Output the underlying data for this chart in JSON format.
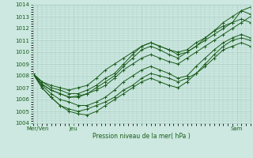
{
  "xlabel": "Pression niveau de la mer( hPa )",
  "bg_color": "#cce8e0",
  "grid_color": "#aaccc4",
  "line_color": "#1a5c1a",
  "ylim": [
    1004,
    1014
  ],
  "yticks": [
    1004,
    1005,
    1006,
    1007,
    1008,
    1009,
    1010,
    1011,
    1012,
    1013,
    1014
  ],
  "xlim": [
    0,
    96
  ],
  "xtick_positions": [
    2,
    18,
    48,
    90
  ],
  "xtick_labels": [
    "Mer/Ven",
    "Jeu",
    "",
    "Sam"
  ],
  "series": [
    {
      "x": [
        0,
        4,
        8,
        12,
        16,
        20,
        24,
        28,
        32,
        36,
        40,
        44,
        48,
        52,
        56,
        60,
        64,
        68,
        72,
        76,
        80,
        84,
        88,
        92,
        96
      ],
      "y": [
        1008.2,
        1007.3,
        1006.8,
        1006.5,
        1006.2,
        1006.3,
        1006.5,
        1006.8,
        1007.2,
        1007.8,
        1008.5,
        1009.0,
        1009.5,
        1009.8,
        1009.5,
        1009.2,
        1009.0,
        1009.5,
        1010.0,
        1010.5,
        1011.0,
        1011.5,
        1012.0,
        1012.5,
        1013.0
      ]
    },
    {
      "x": [
        0,
        4,
        8,
        12,
        16,
        20,
        24,
        28,
        32,
        36,
        40,
        44,
        48,
        52,
        56,
        60,
        64,
        68,
        72,
        76,
        80,
        84,
        88,
        92,
        96
      ],
      "y": [
        1008.2,
        1007.0,
        1006.2,
        1005.5,
        1005.0,
        1004.8,
        1004.7,
        1005.0,
        1005.5,
        1006.0,
        1006.5,
        1007.0,
        1007.5,
        1007.8,
        1007.5,
        1007.2,
        1007.0,
        1007.5,
        1008.2,
        1009.0,
        1009.8,
        1010.5,
        1011.0,
        1011.2,
        1011.0
      ]
    },
    {
      "x": [
        0,
        4,
        8,
        12,
        16,
        20,
        24,
        28,
        32,
        36,
        40,
        44,
        48,
        52,
        56,
        60,
        64,
        68,
        72,
        76,
        80,
        84,
        88,
        92,
        96
      ],
      "y": [
        1008.2,
        1007.5,
        1007.0,
        1006.8,
        1006.5,
        1006.5,
        1006.8,
        1007.2,
        1007.8,
        1008.2,
        1009.0,
        1009.8,
        1010.5,
        1010.8,
        1010.5,
        1010.2,
        1009.8,
        1010.0,
        1010.5,
        1011.0,
        1011.5,
        1012.0,
        1012.5,
        1013.5,
        1013.8
      ]
    },
    {
      "x": [
        0,
        4,
        8,
        12,
        16,
        20,
        24,
        28,
        32,
        36,
        40,
        44,
        48,
        52,
        56,
        60,
        64,
        68,
        72,
        76,
        80,
        84,
        88,
        92,
        96
      ],
      "y": [
        1008.2,
        1007.2,
        1006.5,
        1006.0,
        1005.8,
        1005.5,
        1005.5,
        1005.8,
        1006.2,
        1006.8,
        1007.5,
        1008.0,
        1008.5,
        1008.8,
        1008.5,
        1008.2,
        1007.8,
        1008.0,
        1008.8,
        1009.5,
        1010.2,
        1010.8,
        1011.2,
        1011.5,
        1011.2
      ]
    },
    {
      "x": [
        0,
        4,
        8,
        12,
        16,
        20,
        24,
        28,
        32,
        36,
        40,
        44,
        48,
        52,
        56,
        60,
        64,
        68,
        72,
        76,
        80,
        84,
        88,
        92,
        96
      ],
      "y": [
        1008.2,
        1007.3,
        1006.8,
        1006.5,
        1006.2,
        1006.2,
        1006.5,
        1007.0,
        1007.5,
        1008.0,
        1008.8,
        1009.5,
        1010.2,
        1010.5,
        1010.2,
        1009.8,
        1009.5,
        1010.0,
        1010.5,
        1011.2,
        1011.8,
        1012.5,
        1013.0,
        1013.5,
        1013.2
      ]
    },
    {
      "x": [
        0,
        4,
        8,
        12,
        16,
        20,
        24,
        28,
        32,
        36,
        40,
        44,
        48,
        52,
        56,
        60,
        64,
        68,
        72,
        76,
        80,
        84,
        88,
        92,
        96
      ],
      "y": [
        1008.2,
        1007.5,
        1007.2,
        1007.0,
        1006.8,
        1007.0,
        1007.2,
        1007.8,
        1008.5,
        1009.0,
        1009.5,
        1010.0,
        1010.5,
        1010.8,
        1010.5,
        1010.2,
        1010.0,
        1010.2,
        1010.8,
        1011.2,
        1011.8,
        1012.2,
        1012.5,
        1012.8,
        1012.5
      ]
    },
    {
      "x": [
        0,
        4,
        8,
        12,
        16,
        20,
        24,
        28,
        32,
        36,
        40,
        44,
        48,
        52,
        56,
        60,
        64,
        68,
        72,
        76,
        80,
        84,
        88,
        92,
        96
      ],
      "y": [
        1008.2,
        1007.0,
        1006.2,
        1005.5,
        1005.2,
        1005.0,
        1005.2,
        1005.5,
        1005.8,
        1006.2,
        1006.8,
        1007.2,
        1007.8,
        1008.2,
        1008.0,
        1007.8,
        1007.5,
        1007.8,
        1008.2,
        1008.8,
        1009.5,
        1010.2,
        1010.5,
        1010.8,
        1010.5
      ]
    }
  ]
}
